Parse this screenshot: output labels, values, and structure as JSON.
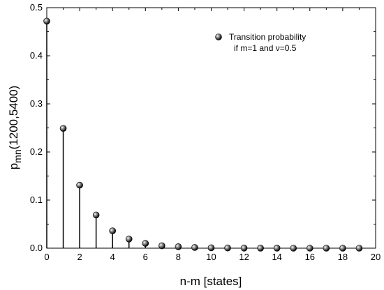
{
  "chart_data": {
    "type": "scatter",
    "style": "stem",
    "xlabel": "n-m [states]",
    "ylabel_main": "p",
    "ylabel_sub": "mn",
    "ylabel_rest": "(1200,5400)",
    "xlim": [
      0,
      20
    ],
    "ylim": [
      0,
      0.5
    ],
    "x_ticks": [
      "0",
      "2",
      "4",
      "6",
      "8",
      "10",
      "12",
      "14",
      "16",
      "18",
      "20"
    ],
    "y_ticks": [
      "0.0",
      "0.1",
      "0.2",
      "0.3",
      "0.4",
      "0.5"
    ],
    "grid": false,
    "legend_position": "top-right",
    "series": [
      {
        "name_line1": "Transition probability",
        "name_line2": "if m=1 and ν=0.5",
        "x": [
          0,
          1,
          2,
          3,
          4,
          5,
          6,
          7,
          8,
          9,
          10,
          11,
          12,
          13,
          14,
          15,
          16,
          17,
          18,
          19
        ],
        "y": [
          0.472,
          0.249,
          0.131,
          0.069,
          0.036,
          0.019,
          0.01,
          0.005,
          0.003,
          0.0015,
          0.0008,
          0.0004,
          0.0002,
          0.0001,
          0.0001,
          0,
          0,
          0,
          0,
          0
        ]
      }
    ]
  }
}
